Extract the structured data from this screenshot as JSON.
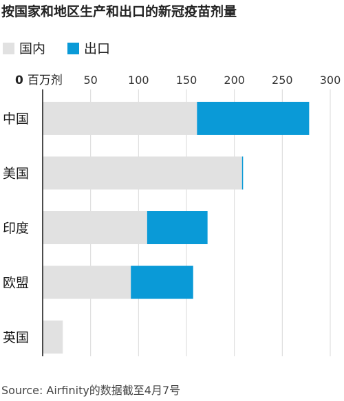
{
  "title": "按国家和地区生产和出口的新冠疫苗剂量",
  "legend": [
    {
      "label": "国内",
      "color": "#e1e1e1"
    },
    {
      "label": "出口",
      "color": "#0a9ad7"
    }
  ],
  "source": "Source: Airfinity的数据截至4月7号",
  "chart_data": {
    "type": "bar",
    "orientation": "horizontal",
    "stacked": true,
    "title": "按国家和地区生产和出口的新冠疫苗剂量",
    "xlabel": "百万剂",
    "ylabel": "",
    "xlim": [
      0,
      300
    ],
    "xticks": [
      0,
      50,
      100,
      150,
      200,
      250,
      300
    ],
    "xtick_labels": [
      "0",
      "50",
      "100",
      "150",
      "200",
      "250",
      "300"
    ],
    "axis_unit_label": "百万剂",
    "grid": true,
    "legend_position": "top-left",
    "categories": [
      "中国",
      "美国",
      "印度",
      "欧盟",
      "英国"
    ],
    "series": [
      {
        "name": "国内",
        "color": "#e1e1e1",
        "values": [
          161,
          208,
          109,
          92,
          21
        ]
      },
      {
        "name": "出口",
        "color": "#0a9ad7",
        "values": [
          117,
          1,
          63,
          65,
          0
        ]
      }
    ]
  }
}
